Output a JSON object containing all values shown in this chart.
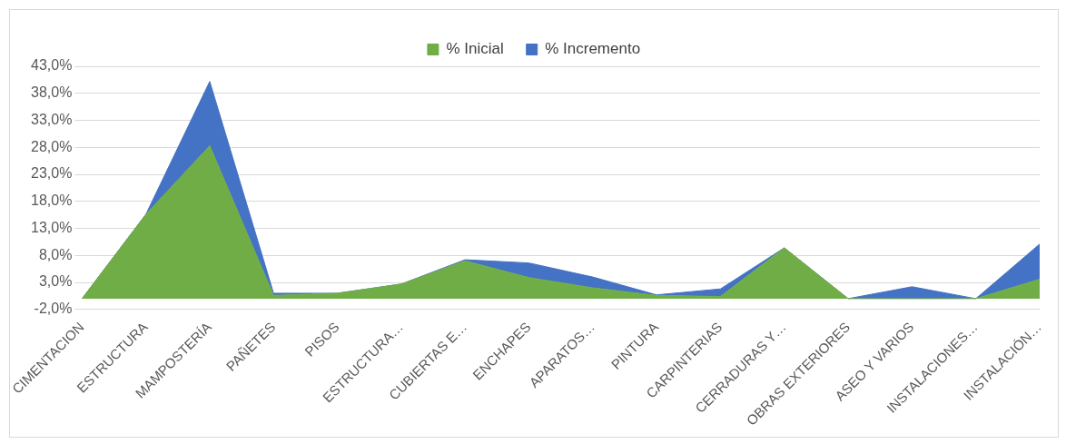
{
  "chart_data": {
    "type": "area",
    "stacked": true,
    "legend": "top",
    "grid": "y",
    "categories": [
      "CIMENTACION",
      "ESTRUCTURA",
      "MAMPOSTERÍA",
      "PAÑETES",
      "PISOS",
      "ESTRUCTURA…",
      "CUBIERTAS E…",
      "ENCHAPES",
      "APARATOS…",
      "PINTURA",
      "CARPINTERIAS",
      "CERRADURAS Y…",
      "OBRAS EXTERIORES",
      "ASEO Y VARIOS",
      "INSTALACIONES…",
      "INSTALACIÓN…"
    ],
    "series": [
      {
        "name": "% Inicial",
        "color": "#70ad47",
        "values": [
          0,
          15.6,
          28.3,
          0.6,
          1.0,
          2.7,
          7.0,
          3.9,
          2.0,
          0.6,
          0.4,
          9.4,
          0,
          0,
          0,
          3.6
        ]
      },
      {
        "name": "% Incremento",
        "color": "#4472c4",
        "values": [
          0,
          0,
          11.9,
          0.4,
          0,
          0,
          0.2,
          2.7,
          2.0,
          0.1,
          1.4,
          0,
          0,
          2.2,
          0,
          6.5
        ]
      }
    ],
    "ylim": [
      -2,
      43
    ],
    "yticks": [
      {
        "value": -2,
        "label": "-2,0%"
      },
      {
        "value": 3,
        "label": "3,0%"
      },
      {
        "value": 8,
        "label": "8,0%"
      },
      {
        "value": 13,
        "label": "13,0%"
      },
      {
        "value": 18,
        "label": "18,0%"
      },
      {
        "value": 23,
        "label": "23,0%"
      },
      {
        "value": 28,
        "label": "28,0%"
      },
      {
        "value": 33,
        "label": "33,0%"
      },
      {
        "value": 38,
        "label": "38,0%"
      },
      {
        "value": 43,
        "label": "43,0%"
      }
    ]
  }
}
